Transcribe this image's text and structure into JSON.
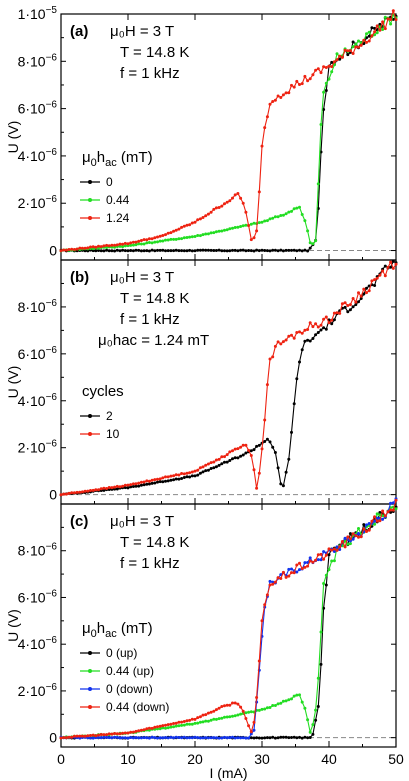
{
  "x_axis": {
    "label": "I (mA)",
    "ticks": [
      "0",
      "10",
      "20",
      "30",
      "40",
      "50"
    ],
    "tick_values": [
      0,
      10,
      20,
      30,
      40,
      50
    ]
  },
  "y_axis_ticks": [
    {
      "value": 0,
      "base": "0",
      "exp": ""
    },
    {
      "value": 2e-06,
      "base": "2·10",
      "exp": "−6"
    },
    {
      "value": 4e-06,
      "base": "4·10",
      "exp": "−6"
    },
    {
      "value": 6e-06,
      "base": "6·10",
      "exp": "−6"
    },
    {
      "value": 8e-06,
      "base": "8·10",
      "exp": "−6"
    }
  ],
  "top_tick": {
    "base": "1·10",
    "exp": "−5"
  },
  "colors": {
    "black": "#000000",
    "green": "#22dd22",
    "red": "#ee2211",
    "blue": "#1133ee",
    "dashed": "#888888"
  },
  "panels": [
    {
      "label": "(a)",
      "ylabel": "U (V)",
      "annotations": [
        "μ₀H = 3 T",
        "T = 14.8 K",
        "f = 1 kHz"
      ],
      "legend_title": "μ₀h<sub>ac</sub> (mT)",
      "legend_title_parts": {
        "pre": "μ",
        "sub0": "0",
        "mid": "h",
        "sub1": "ac",
        "post": " (mT)"
      },
      "legend_entries": [
        {
          "label": "0",
          "color": "black"
        },
        {
          "label": "0.44",
          "color": "green"
        },
        {
          "label": "1.24",
          "color": "red"
        }
      ]
    },
    {
      "label": "(b)",
      "ylabel": "U (V)",
      "annotations": [
        "μ₀H = 3 T",
        "T = 14.8 K",
        "f = 1 kHz",
        "μ₀hac = 1.24 mT"
      ],
      "legend_title_plain": "cycles",
      "legend_entries": [
        {
          "label": "2",
          "color": "black"
        },
        {
          "label": "10",
          "color": "red"
        }
      ]
    },
    {
      "label": "(c)",
      "ylabel": "U (V)",
      "annotations": [
        "μ₀H = 3 T",
        "T = 14.8 K",
        "f = 1 kHz"
      ],
      "legend_title_parts": {
        "pre": "μ",
        "sub0": "0",
        "mid": "h",
        "sub1": "ac",
        "post": " (mT)"
      },
      "legend_entries": [
        {
          "label": "0 (up)",
          "color": "black"
        },
        {
          "label": "0.44 (up)",
          "color": "green"
        },
        {
          "label": "0 (down)",
          "color": "blue"
        },
        {
          "label": "0.44 (down)",
          "color": "red"
        }
      ]
    }
  ],
  "chart_data": [
    {
      "type": "line",
      "title": "(a)",
      "xlabel": "I (mA)",
      "ylabel": "U (V)",
      "xlim": [
        0,
        50
      ],
      "ylim": [
        -4e-07,
        1e-05
      ],
      "series": [
        {
          "name": "0",
          "color": "black",
          "x": [
            0,
            30,
            37,
            38.2,
            39,
            40,
            42,
            45,
            50
          ],
          "y": [
            0,
            0,
            0,
            5e-07,
            5.5e-06,
            7.9e-06,
            8.3e-06,
            8.9e-06,
            1e-05
          ]
        },
        {
          "name": "0.44",
          "color": "green",
          "x": [
            0,
            10,
            20,
            30,
            34,
            35.5,
            36.5,
            37.3,
            38,
            39,
            41,
            45,
            50
          ],
          "y": [
            0,
            2e-07,
            6e-07,
            1.2e-06,
            1.6e-06,
            1.9e-06,
            1.2e-06,
            2e-07,
            4e-07,
            6.5e-06,
            8.1e-06,
            8.9e-06,
            1e-05
          ]
        },
        {
          "name": "1.24",
          "color": "red",
          "x": [
            0,
            10,
            15,
            20,
            25,
            26.5,
            27.5,
            28.5,
            29.3,
            30,
            31,
            32,
            35,
            40,
            45,
            50
          ],
          "y": [
            0,
            3e-07,
            6e-07,
            1.2e-06,
            2.1e-06,
            2.4e-06,
            1.8e-06,
            3e-07,
            9e-07,
            4.5e-06,
            6.1e-06,
            6.5e-06,
            7e-06,
            7.8e-06,
            8.8e-06,
            1e-05
          ]
        }
      ]
    },
    {
      "type": "line",
      "title": "(b)",
      "xlabel": "I (mA)",
      "ylabel": "U (V)",
      "xlim": [
        0,
        50
      ],
      "ylim": [
        -4e-07,
        1e-05
      ],
      "series": [
        {
          "name": "2",
          "color": "black",
          "x": [
            0,
            10,
            20,
            28,
            30,
            31,
            32,
            33,
            34,
            35,
            36,
            40,
            45,
            50
          ],
          "y": [
            0,
            3e-07,
            8e-07,
            1.8e-06,
            2.2e-06,
            2.4e-06,
            1.8e-06,
            1e-07,
            1.5e-06,
            4.5e-06,
            6.3e-06,
            7.3e-06,
            8.5e-06,
            1e-05
          ]
        },
        {
          "name": "10",
          "color": "red",
          "x": [
            0,
            10,
            20,
            26,
            27.5,
            28.5,
            29.3,
            30.3,
            31,
            32,
            36,
            40,
            45,
            50
          ],
          "y": [
            0,
            4e-07,
            1e-06,
            1.9e-06,
            2.2e-06,
            1.6e-06,
            1e-07,
            2.8e-06,
            5.5e-06,
            6.3e-06,
            7e-06,
            7.5e-06,
            8.6e-06,
            1e-05
          ]
        }
      ]
    },
    {
      "type": "line",
      "title": "(c)",
      "xlabel": "I (mA)",
      "ylabel": "U (V)",
      "xlim": [
        0,
        50
      ],
      "ylim": [
        -4e-07,
        1e-05
      ],
      "series": [
        {
          "name": "0 (up)",
          "color": "black",
          "x": [
            0,
            30,
            37.5,
            38.5,
            39.2,
            40,
            42,
            45,
            50
          ],
          "y": [
            0,
            0,
            0,
            1.5e-06,
            5.5e-06,
            7.8e-06,
            8.3e-06,
            8.9e-06,
            1e-05
          ]
        },
        {
          "name": "0.44 (up)",
          "color": "green",
          "x": [
            0,
            10,
            20,
            30,
            34,
            35.5,
            36.5,
            37.3,
            38.2,
            39.2,
            41,
            45,
            50
          ],
          "y": [
            0,
            2e-07,
            6e-07,
            1.2e-06,
            1.6e-06,
            1.9e-06,
            1.2e-06,
            1e-07,
            1.5e-06,
            6.5e-06,
            7.9e-06,
            8.9e-06,
            1e-05
          ]
        },
        {
          "name": "0 (down)",
          "color": "blue",
          "x": [
            0,
            20,
            28,
            28.8,
            29.5,
            30.3,
            31.2,
            32,
            35,
            40,
            45,
            50
          ],
          "y": [
            0,
            0,
            0,
            3e-07,
            2.5e-06,
            5.5e-06,
            6.6e-06,
            6.7e-06,
            7.2e-06,
            7.9e-06,
            8.8e-06,
            1e-05
          ]
        },
        {
          "name": "0.44 (down)",
          "color": "red",
          "x": [
            0,
            10,
            20,
            24,
            26,
            27,
            28,
            28.6,
            29.3,
            30.1,
            31,
            32,
            35,
            40,
            45,
            50
          ],
          "y": [
            0,
            2e-07,
            8e-07,
            1.3e-06,
            1.5e-06,
            1.3e-06,
            5e-07,
            1e-07,
            2e-06,
            5.3e-06,
            6.5e-06,
            6.7e-06,
            7.2e-06,
            7.9e-06,
            8.8e-06,
            1e-05
          ]
        }
      ]
    }
  ]
}
